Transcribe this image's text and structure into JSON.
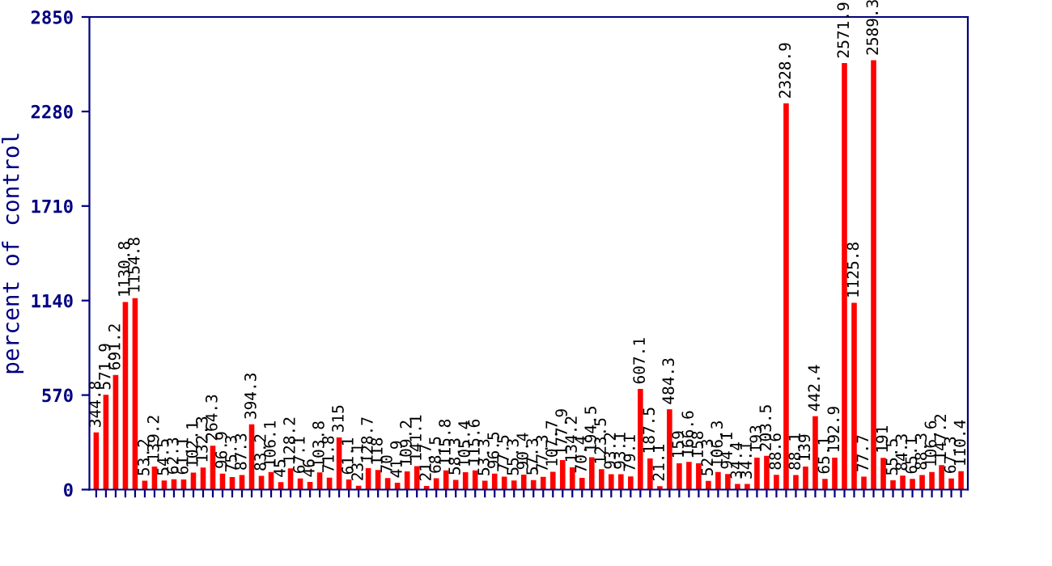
{
  "chart_data": {
    "type": "bar",
    "ylabel": "percent of control",
    "categories": [
      null,
      null,
      null,
      null,
      null,
      null,
      null,
      null,
      null,
      null,
      null,
      null,
      null,
      null,
      null,
      null,
      null,
      null,
      null,
      null,
      null,
      null,
      null,
      null,
      null,
      null,
      null,
      null,
      null,
      null,
      null,
      null,
      null,
      null,
      null,
      null,
      null,
      null,
      null,
      null,
      null,
      null,
      null,
      null,
      null,
      null,
      null,
      null,
      null,
      null,
      null,
      null,
      null,
      null,
      null,
      null,
      null,
      null,
      null,
      null,
      null,
      null,
      null,
      null,
      null,
      null,
      null,
      null,
      null,
      null,
      null,
      null,
      null,
      null,
      null,
      null,
      null,
      null,
      null,
      null,
      null,
      null,
      null,
      null,
      null,
      null,
      null,
      null,
      null,
      null
    ],
    "values": [
      344.8,
      571.9,
      691.2,
      1130.8,
      1154.8,
      53.2,
      139.2,
      54.5,
      62.3,
      61.1,
      102.1,
      132.3,
      264.3,
      96.9,
      75.3,
      87.3,
      394.3,
      83.2,
      106.1,
      45,
      128.2,
      67.1,
      46,
      103.8,
      71.8,
      315,
      61.1,
      23.1,
      128.7,
      118,
      70,
      41.9,
      109.2,
      141.1,
      21.7,
      68.5,
      115.8,
      58.3,
      105.4,
      115.6,
      53.3,
      96.5,
      77.5,
      55.3,
      90.4,
      57.3,
      77.3,
      107.7,
      177.9,
      134.2,
      70.4,
      194.5,
      123.5,
      93.2,
      93.1,
      79.1,
      607.1,
      187.5,
      21.1,
      484.3,
      159,
      166.6,
      158,
      52.3,
      106.3,
      94.1,
      34.4,
      34.1,
      193,
      203.5,
      88.6,
      2328.9,
      88.1,
      139,
      442.4,
      65.1,
      192.9,
      2571.9,
      1125.8,
      77.7,
      2589.3,
      191,
      55.5,
      84.3,
      65.1,
      88.3,
      106.6,
      147.2,
      67.3,
      110.4
    ],
    "color": "#ff0000",
    "ylim": [
      0,
      2850
    ],
    "yticks": [
      0,
      570,
      1140,
      1710,
      2280,
      2850
    ],
    "data_labels": true,
    "grid": false,
    "legend": false
  }
}
